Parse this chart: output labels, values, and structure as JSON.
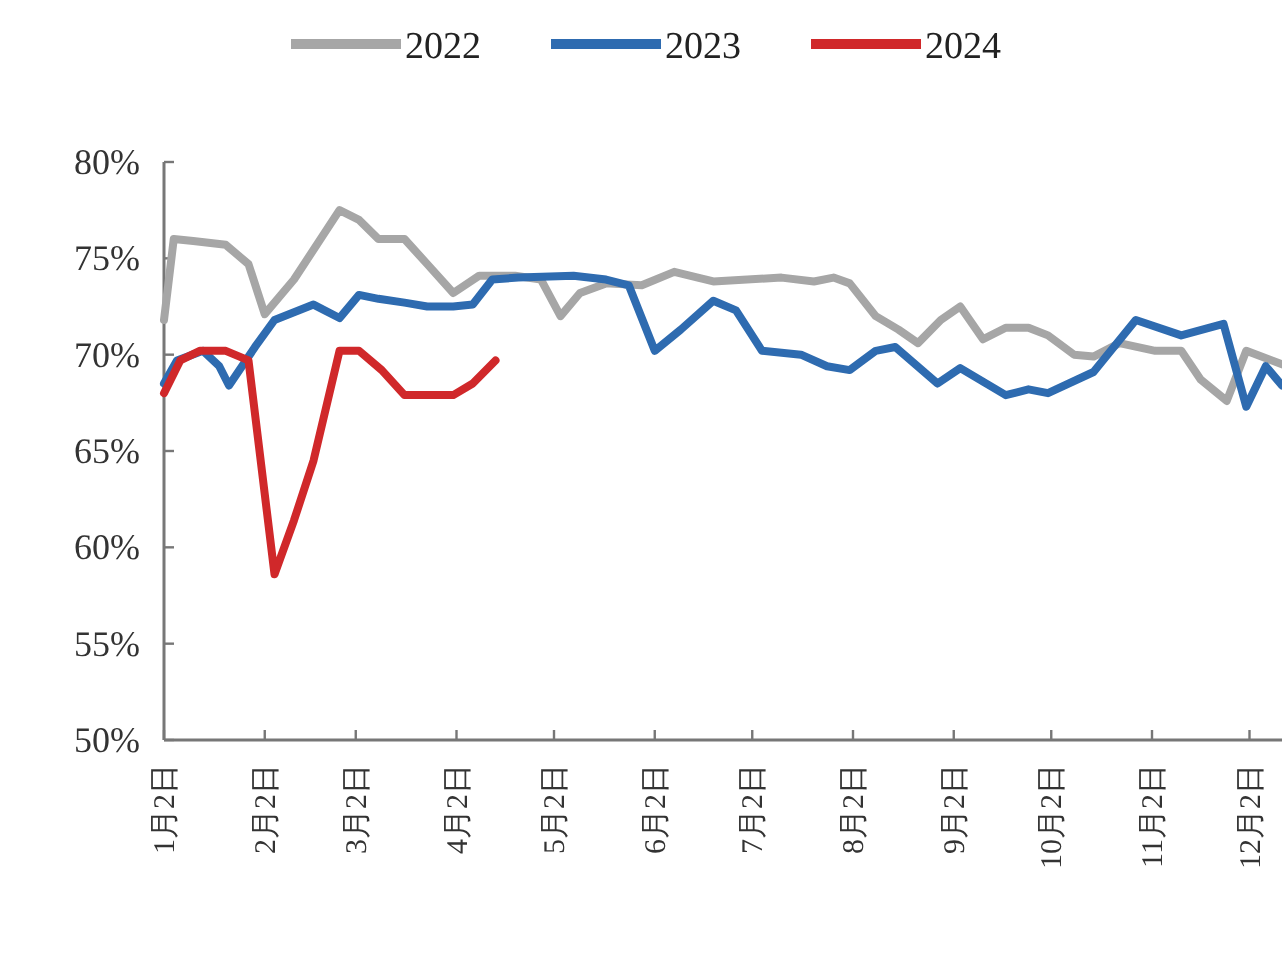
{
  "chart_data": {
    "type": "line",
    "legend": "top",
    "line_style": "solid",
    "marker": "none",
    "grid": false,
    "xlim": [
      "--01-02",
      "--12-12"
    ],
    "xticks": [
      {
        "value": "--01-02",
        "label": "1月2日"
      },
      {
        "value": "--02-02",
        "label": "2月2日"
      },
      {
        "value": "--03-02",
        "label": "3月2日"
      },
      {
        "value": "--04-02",
        "label": "4月2日"
      },
      {
        "value": "--05-02",
        "label": "5月2日"
      },
      {
        "value": "--06-02",
        "label": "6月2日"
      },
      {
        "value": "--07-02",
        "label": "7月2日"
      },
      {
        "value": "--08-02",
        "label": "8月2日"
      },
      {
        "value": "--09-02",
        "label": "9月2日"
      },
      {
        "value": "--10-02",
        "label": "10月2日"
      },
      {
        "value": "--11-02",
        "label": "11月2日"
      },
      {
        "value": "--12-02",
        "label": "12月2日"
      }
    ],
    "ylim": [
      50,
      80
    ],
    "yticks": [
      {
        "value": 50,
        "label": "50%"
      },
      {
        "value": 55,
        "label": "55%"
      },
      {
        "value": 60,
        "label": "60%"
      },
      {
        "value": 65,
        "label": "65%"
      },
      {
        "value": 70,
        "label": "70%"
      },
      {
        "value": 75,
        "label": "75%"
      },
      {
        "value": 80,
        "label": "80%"
      }
    ],
    "series": [
      {
        "name": "2022",
        "color": "#a6a6a6",
        "x": [
          "--01-02",
          "--01-05",
          "--01-11",
          "--01-21",
          "--01-28",
          "--02-02",
          "--02-11",
          "--02-25",
          "--03-03",
          "--03-09",
          "--03-17",
          "--03-24",
          "--04-01",
          "--04-09",
          "--04-20",
          "--04-28",
          "--05-04",
          "--05-10",
          "--05-18",
          "--05-29",
          "--06-08",
          "--06-20",
          "--07-11",
          "--07-21",
          "--07-27",
          "--08-01",
          "--08-09",
          "--08-16",
          "--08-22",
          "--08-29",
          "--09-04",
          "--09-11",
          "--09-18",
          "--09-25",
          "--10-01",
          "--10-09",
          "--10-15",
          "--10-23",
          "--11-03",
          "--11-11",
          "--11-17",
          "--11-25",
          "--12-01",
          "--12-12"
        ],
        "values": [
          71.8,
          76.0,
          75.9,
          75.7,
          74.7,
          72.1,
          73.9,
          77.5,
          77.0,
          76.0,
          76.0,
          74.7,
          73.2,
          74.1,
          74.1,
          73.9,
          72.0,
          73.2,
          73.7,
          73.6,
          74.3,
          73.8,
          74.0,
          73.8,
          74.0,
          73.7,
          72.0,
          71.3,
          70.6,
          71.8,
          72.5,
          70.8,
          71.4,
          71.4,
          71.0,
          70.0,
          69.9,
          70.6,
          70.2,
          70.2,
          68.7,
          67.6,
          70.2,
          69.5
        ]
      },
      {
        "name": "2023",
        "color": "#2e6bb0",
        "x": [
          "--01-02",
          "--01-06",
          "--01-14",
          "--01-19",
          "--01-22",
          "--01-30",
          "--02-05",
          "--02-17",
          "--02-25",
          "--03-03",
          "--03-09",
          "--03-17",
          "--03-24",
          "--04-01",
          "--04-07",
          "--04-13",
          "--04-21",
          "--05-08",
          "--05-18",
          "--05-25",
          "--06-02",
          "--06-10",
          "--06-20",
          "--06-27",
          "--07-05",
          "--07-17",
          "--07-25",
          "--08-01",
          "--08-09",
          "--08-15",
          "--08-28",
          "--09-04",
          "--09-18",
          "--09-25",
          "--10-01",
          "--10-15",
          "--10-28",
          "--11-11",
          "--11-24",
          "--12-01",
          "--12-07",
          "--12-12"
        ],
        "values": [
          68.5,
          69.7,
          70.2,
          69.4,
          68.4,
          70.4,
          71.8,
          72.6,
          71.9,
          73.1,
          72.9,
          72.7,
          72.5,
          72.5,
          72.6,
          73.9,
          74.0,
          74.1,
          73.9,
          73.6,
          70.2,
          71.3,
          72.8,
          72.3,
          70.2,
          70.0,
          69.4,
          69.2,
          70.2,
          70.4,
          68.5,
          69.3,
          67.9,
          68.2,
          68.0,
          69.1,
          71.8,
          71.0,
          71.6,
          67.3,
          69.4,
          68.4
        ]
      },
      {
        "name": "2024",
        "color": "#d0282a",
        "x": [
          "--01-02",
          "--01-07",
          "--01-13",
          "--01-21",
          "--01-28",
          "--02-05",
          "--02-11",
          "--02-17",
          "--02-25",
          "--03-03",
          "--03-10",
          "--03-17",
          "--04-01",
          "--04-07",
          "--04-14"
        ],
        "values": [
          68.0,
          69.7,
          70.2,
          70.2,
          69.7,
          58.6,
          61.4,
          64.5,
          70.2,
          70.2,
          69.2,
          67.9,
          67.9,
          68.5,
          69.7
        ]
      }
    ]
  }
}
